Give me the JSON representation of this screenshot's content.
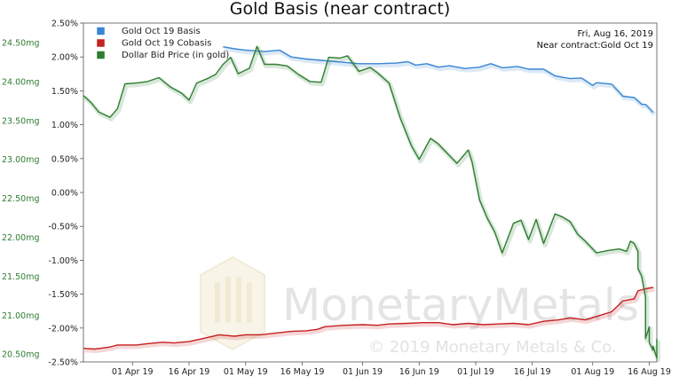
{
  "chart_data": {
    "type": "line",
    "title": "Gold Basis (near contract)",
    "info": {
      "date": "Fri, Aug 16, 2019",
      "contract": "Near contract:Gold Oct 19"
    },
    "x_ticks": [
      "01 Apr 19",
      "16 Apr 19",
      "01 May 19",
      "16 May 19",
      "01 Jun 19",
      "16 Jun 19",
      "01 Jul 19",
      "16 Jul 19",
      "01 Aug 19",
      "16 Aug 19"
    ],
    "x_range": [
      "2019-03-19",
      "2019-08-18"
    ],
    "y_left": {
      "ticks": [
        "2.50%",
        "2.00%",
        "1.50%",
        "1.00%",
        "0.50%",
        "0.00%",
        "-0.50%",
        "-1.00%",
        "-1.50%",
        "-2.00%",
        "-2.50%"
      ],
      "ylim": [
        -2.5,
        2.5
      ]
    },
    "y_right": {
      "ticks": [
        "24.50mg",
        "24.00mg",
        "23.50mg",
        "23.00mg",
        "22.50mg",
        "22.00mg",
        "21.50mg",
        "21.00mg",
        "20.50mg"
      ],
      "ylim": [
        20.4,
        24.75
      ]
    },
    "legend": [
      {
        "name": "Gold Oct 19 Basis",
        "color": "#3a86d4"
      },
      {
        "name": "Gold Oct 19 Cobasis",
        "color": "#c62020"
      },
      {
        "name": "Dollar Bid Price (in gold)",
        "color": "#2e7d32"
      }
    ],
    "series": [
      {
        "name": "Gold Oct 19 Basis",
        "axis": "left",
        "color": "#3a86d4",
        "points": [
          [
            "2019-04-25",
            2.15
          ],
          [
            "2019-04-28",
            2.12
          ],
          [
            "2019-05-01",
            2.1
          ],
          [
            "2019-05-06",
            2.08
          ],
          [
            "2019-05-10",
            2.1
          ],
          [
            "2019-05-13",
            2.0
          ],
          [
            "2019-05-17",
            1.97
          ],
          [
            "2019-05-21",
            1.95
          ],
          [
            "2019-05-25",
            1.93
          ],
          [
            "2019-05-31",
            1.9
          ],
          [
            "2019-06-05",
            1.9
          ],
          [
            "2019-06-10",
            1.91
          ],
          [
            "2019-06-13",
            1.93
          ],
          [
            "2019-06-15",
            1.88
          ],
          [
            "2019-06-18",
            1.9
          ],
          [
            "2019-06-21",
            1.85
          ],
          [
            "2019-06-24",
            1.87
          ],
          [
            "2019-06-28",
            1.83
          ],
          [
            "2019-07-02",
            1.85
          ],
          [
            "2019-07-05",
            1.9
          ],
          [
            "2019-07-08",
            1.84
          ],
          [
            "2019-07-12",
            1.86
          ],
          [
            "2019-07-15",
            1.82
          ],
          [
            "2019-07-19",
            1.82
          ],
          [
            "2019-07-22",
            1.72
          ],
          [
            "2019-07-26",
            1.68
          ],
          [
            "2019-07-29",
            1.69
          ],
          [
            "2019-08-01",
            1.58
          ],
          [
            "2019-08-02",
            1.62
          ],
          [
            "2019-08-06",
            1.6
          ],
          [
            "2019-08-09",
            1.42
          ],
          [
            "2019-08-12",
            1.4
          ],
          [
            "2019-08-14",
            1.3
          ],
          [
            "2019-08-15",
            1.3
          ],
          [
            "2019-08-17",
            1.18
          ]
        ]
      },
      {
        "name": "Gold Oct 19 Cobasis",
        "axis": "left",
        "color": "#c62020",
        "points": [
          [
            "2019-03-19",
            -2.3
          ],
          [
            "2019-03-22",
            -2.31
          ],
          [
            "2019-03-26",
            -2.28
          ],
          [
            "2019-03-28",
            -2.25
          ],
          [
            "2019-04-02",
            -2.25
          ],
          [
            "2019-04-05",
            -2.23
          ],
          [
            "2019-04-09",
            -2.21
          ],
          [
            "2019-04-12",
            -2.22
          ],
          [
            "2019-04-16",
            -2.2
          ],
          [
            "2019-04-20",
            -2.15
          ],
          [
            "2019-04-24",
            -2.1
          ],
          [
            "2019-04-28",
            -2.12
          ],
          [
            "2019-05-01",
            -2.1
          ],
          [
            "2019-05-05",
            -2.1
          ],
          [
            "2019-05-08",
            -2.08
          ],
          [
            "2019-05-13",
            -2.05
          ],
          [
            "2019-05-17",
            -2.04
          ],
          [
            "2019-05-20",
            -2.02
          ],
          [
            "2019-05-22",
            -1.98
          ],
          [
            "2019-05-27",
            -1.96
          ],
          [
            "2019-06-01",
            -1.95
          ],
          [
            "2019-06-05",
            -1.96
          ],
          [
            "2019-06-08",
            -1.94
          ],
          [
            "2019-06-13",
            -1.93
          ],
          [
            "2019-06-17",
            -1.92
          ],
          [
            "2019-06-21",
            -1.92
          ],
          [
            "2019-06-25",
            -1.95
          ],
          [
            "2019-06-29",
            -1.93
          ],
          [
            "2019-07-03",
            -1.95
          ],
          [
            "2019-07-07",
            -1.94
          ],
          [
            "2019-07-11",
            -1.93
          ],
          [
            "2019-07-15",
            -1.95
          ],
          [
            "2019-07-19",
            -1.9
          ],
          [
            "2019-07-23",
            -1.88
          ],
          [
            "2019-07-26",
            -1.85
          ],
          [
            "2019-07-30",
            -1.88
          ],
          [
            "2019-08-02",
            -1.83
          ],
          [
            "2019-08-06",
            -1.76
          ],
          [
            "2019-08-09",
            -1.6
          ],
          [
            "2019-08-12",
            -1.57
          ],
          [
            "2019-08-13",
            -1.45
          ],
          [
            "2019-08-15",
            -1.42
          ],
          [
            "2019-08-17",
            -1.4
          ]
        ]
      },
      {
        "name": "Dollar Bid Price (in gold)",
        "axis": "right",
        "color": "#2e7d32",
        "points": [
          [
            "2019-03-19",
            23.82
          ],
          [
            "2019-03-21",
            23.73
          ],
          [
            "2019-03-23",
            23.61
          ],
          [
            "2019-03-26",
            23.54
          ],
          [
            "2019-03-28",
            23.65
          ],
          [
            "2019-03-30",
            23.97
          ],
          [
            "2019-04-02",
            23.98
          ],
          [
            "2019-04-05",
            24.0
          ],
          [
            "2019-04-08",
            24.05
          ],
          [
            "2019-04-11",
            23.93
          ],
          [
            "2019-04-14",
            23.85
          ],
          [
            "2019-04-16",
            23.76
          ],
          [
            "2019-04-18",
            23.98
          ],
          [
            "2019-04-21",
            24.04
          ],
          [
            "2019-04-23",
            24.09
          ],
          [
            "2019-04-25",
            24.22
          ],
          [
            "2019-04-27",
            24.31
          ],
          [
            "2019-04-29",
            24.1
          ],
          [
            "2019-05-02",
            24.17
          ],
          [
            "2019-05-04",
            24.45
          ],
          [
            "2019-05-06",
            24.22
          ],
          [
            "2019-05-09",
            24.22
          ],
          [
            "2019-05-12",
            24.2
          ],
          [
            "2019-05-15",
            24.09
          ],
          [
            "2019-05-18",
            24.0
          ],
          [
            "2019-05-21",
            23.99
          ],
          [
            "2019-05-23",
            24.31
          ],
          [
            "2019-05-26",
            24.3
          ],
          [
            "2019-05-28",
            24.33
          ],
          [
            "2019-05-31",
            24.13
          ],
          [
            "2019-06-03",
            24.18
          ],
          [
            "2019-06-05",
            24.11
          ],
          [
            "2019-06-08",
            23.98
          ],
          [
            "2019-06-11",
            23.53
          ],
          [
            "2019-06-14",
            23.17
          ],
          [
            "2019-06-16",
            23.0
          ],
          [
            "2019-06-19",
            23.27
          ],
          [
            "2019-06-21",
            23.2
          ],
          [
            "2019-06-23",
            23.1
          ],
          [
            "2019-06-26",
            22.95
          ],
          [
            "2019-06-29",
            23.12
          ],
          [
            "2019-06-30",
            22.97
          ],
          [
            "2019-07-02",
            22.48
          ],
          [
            "2019-07-04",
            22.25
          ],
          [
            "2019-07-06",
            22.07
          ],
          [
            "2019-07-08",
            21.8
          ],
          [
            "2019-07-11",
            22.18
          ],
          [
            "2019-07-13",
            22.22
          ],
          [
            "2019-07-15",
            21.97
          ],
          [
            "2019-07-17",
            22.23
          ],
          [
            "2019-07-19",
            21.92
          ],
          [
            "2019-07-22",
            22.3
          ],
          [
            "2019-07-24",
            22.26
          ],
          [
            "2019-07-26",
            22.2
          ],
          [
            "2019-07-28",
            22.04
          ],
          [
            "2019-07-30",
            21.95
          ],
          [
            "2019-08-02",
            21.8
          ],
          [
            "2019-08-05",
            21.83
          ],
          [
            "2019-08-08",
            21.85
          ],
          [
            "2019-08-10",
            21.82
          ],
          [
            "2019-08-11",
            21.95
          ],
          [
            "2019-08-12",
            21.92
          ],
          [
            "2019-08-13",
            21.82
          ],
          [
            "2019-08-13",
            21.6
          ],
          [
            "2019-08-14",
            21.5
          ],
          [
            "2019-08-15",
            21.23
          ],
          [
            "2019-08-15",
            20.7
          ],
          [
            "2019-08-16",
            20.85
          ],
          [
            "2019-08-16",
            20.65
          ],
          [
            "2019-08-17",
            20.55
          ],
          [
            "2019-08-17",
            20.6
          ],
          [
            "2019-08-18",
            20.45
          ],
          [
            "2019-08-18",
            20.7
          ]
        ]
      }
    ],
    "watermark": {
      "text": "MonetaryMetals",
      "copyright": "© 2019 Monetary Metals & Co."
    }
  }
}
